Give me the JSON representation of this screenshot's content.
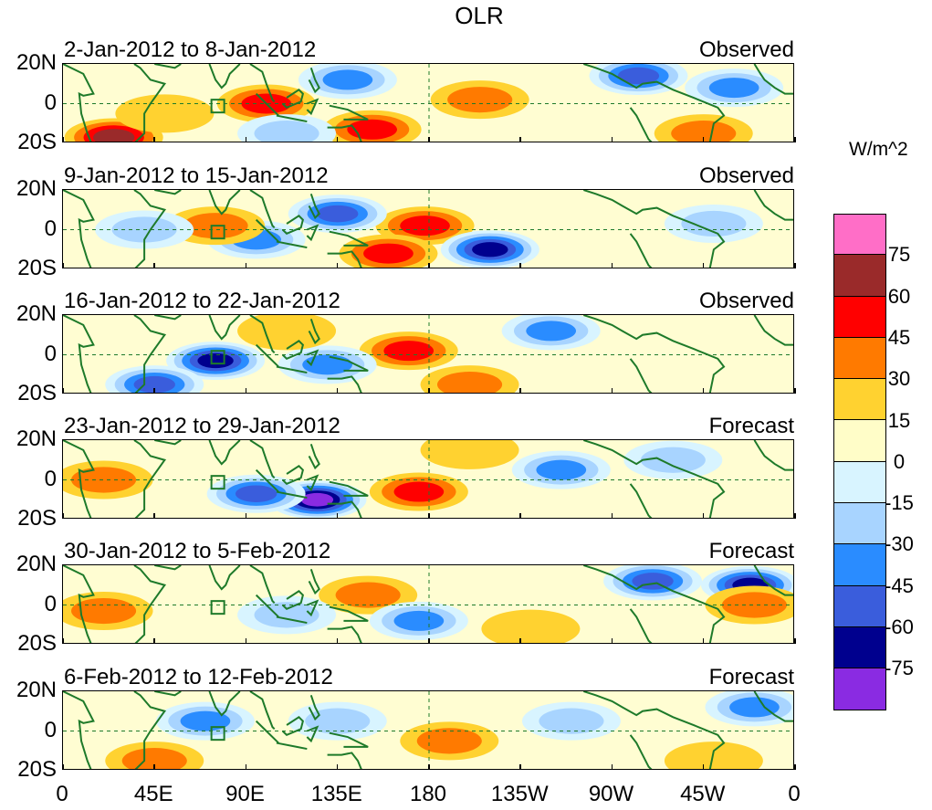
{
  "title": "OLR",
  "units": "W/m^2",
  "lat_labels": [
    "20N",
    "0",
    "20S"
  ],
  "lon_labels": [
    "0",
    "45E",
    "90E",
    "135E",
    "180",
    "135W",
    "90W",
    "45W",
    "0"
  ],
  "panels": [
    {
      "date": "2-Jan-2012 to 8-Jan-2012",
      "kind": "Observed"
    },
    {
      "date": "9-Jan-2012 to 15-Jan-2012",
      "kind": "Observed"
    },
    {
      "date": "16-Jan-2012 to 22-Jan-2012",
      "kind": "Observed"
    },
    {
      "date": "23-Jan-2012 to 29-Jan-2012",
      "kind": "Forecast"
    },
    {
      "date": "30-Jan-2012 to 5-Feb-2012",
      "kind": "Forecast"
    },
    {
      "date": "6-Feb-2012 to 12-Feb-2012",
      "kind": "Forecast"
    }
  ],
  "colorbar": {
    "colors": [
      "#ff6ec7",
      "#9a2a2a",
      "#ff0000",
      "#ff7a00",
      "#ffd230",
      "#fffdc8",
      "#d8f4ff",
      "#a8d4ff",
      "#2a8cff",
      "#3a5ddc",
      "#00008e",
      "#8a2be2"
    ],
    "ticks": [
      "75",
      "60",
      "45",
      "30",
      "15",
      "0",
      "-15",
      "-30",
      "-45",
      "-60",
      "-75"
    ]
  },
  "fields": {
    "c": {
      "+15": "#ffd230",
      "+30": "#ff7a00",
      "+45": "#ff0000",
      "+60": "#9a2a2a",
      "-15": "#a8d4ff",
      "-30": "#2a8cff",
      "-45": "#3a5ddc",
      "-60": "#00008e",
      "-75": "#8a2be2",
      "0-": "#d8f4ff"
    }
  },
  "anomalies": [
    [
      {
        "lon": 25,
        "lat": -17,
        "level": "+60"
      },
      {
        "lon": 100,
        "lat": 0,
        "level": "+45"
      },
      {
        "lon": 152,
        "lat": -13,
        "level": "+45"
      },
      {
        "lon": 205,
        "lat": 2,
        "level": "+30"
      },
      {
        "lon": 140,
        "lat": 12,
        "level": "-30"
      },
      {
        "lon": 283,
        "lat": 14,
        "level": "-45"
      },
      {
        "lon": 330,
        "lat": 8,
        "level": "-30"
      },
      {
        "lon": 110,
        "lat": -15,
        "level": "-15"
      },
      {
        "lon": 50,
        "lat": -5,
        "level": "+15"
      },
      {
        "lon": 315,
        "lat": -15,
        "level": "+30"
      }
    ],
    [
      {
        "lon": 178,
        "lat": 2,
        "level": "+45"
      },
      {
        "lon": 160,
        "lat": -12,
        "level": "+45"
      },
      {
        "lon": 210,
        "lat": -10,
        "level": "-60"
      },
      {
        "lon": 135,
        "lat": 8,
        "level": "-45"
      },
      {
        "lon": 95,
        "lat": -5,
        "level": "-30"
      },
      {
        "lon": 75,
        "lat": 2,
        "level": "+30"
      },
      {
        "lon": 320,
        "lat": 3,
        "level": "-15"
      },
      {
        "lon": 40,
        "lat": 0,
        "level": "-15"
      }
    ],
    [
      {
        "lon": 170,
        "lat": 2,
        "level": "+45"
      },
      {
        "lon": 75,
        "lat": -3,
        "level": "-60"
      },
      {
        "lon": 240,
        "lat": 12,
        "level": "-30"
      },
      {
        "lon": 130,
        "lat": -5,
        "level": "-30"
      },
      {
        "lon": 45,
        "lat": -15,
        "level": "-45"
      },
      {
        "lon": 200,
        "lat": -15,
        "level": "+30"
      },
      {
        "lon": 110,
        "lat": 12,
        "level": "+15"
      }
    ],
    [
      {
        "lon": 125,
        "lat": -10,
        "level": "-75"
      },
      {
        "lon": 95,
        "lat": -7,
        "level": "-45"
      },
      {
        "lon": 175,
        "lat": -6,
        "level": "+45"
      },
      {
        "lon": 20,
        "lat": 0,
        "level": "+30"
      },
      {
        "lon": 245,
        "lat": 5,
        "level": "-30"
      },
      {
        "lon": 200,
        "lat": 15,
        "level": "+15"
      },
      {
        "lon": 300,
        "lat": 10,
        "level": "-15"
      }
    ],
    [
      {
        "lon": 290,
        "lat": 12,
        "level": "-45"
      },
      {
        "lon": 338,
        "lat": 10,
        "level": "-60"
      },
      {
        "lon": 150,
        "lat": 5,
        "level": "+30"
      },
      {
        "lon": 175,
        "lat": -8,
        "level": "-30"
      },
      {
        "lon": 20,
        "lat": -3,
        "level": "+30"
      },
      {
        "lon": 110,
        "lat": -5,
        "level": "-15"
      },
      {
        "lon": 340,
        "lat": 0,
        "level": "+30"
      },
      {
        "lon": 230,
        "lat": -12,
        "level": "+15"
      }
    ],
    [
      {
        "lon": 70,
        "lat": 5,
        "level": "-30"
      },
      {
        "lon": 190,
        "lat": -5,
        "level": "+30"
      },
      {
        "lon": 340,
        "lat": 12,
        "level": "-30"
      },
      {
        "lon": 135,
        "lat": 5,
        "level": "-15"
      },
      {
        "lon": 45,
        "lat": -15,
        "level": "+30"
      },
      {
        "lon": 320,
        "lat": -15,
        "level": "+15"
      },
      {
        "lon": 250,
        "lat": 5,
        "level": "-15"
      }
    ]
  ]
}
